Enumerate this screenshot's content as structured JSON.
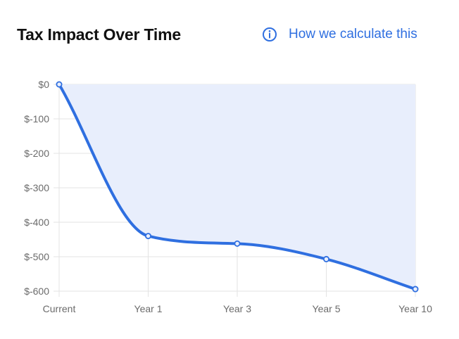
{
  "header": {
    "title": "Tax Impact Over Time",
    "help_link_label": "How we calculate this",
    "help_icon": "info-circle-icon"
  },
  "chart_data": {
    "type": "area",
    "title": "",
    "xlabel": "",
    "ylabel": "",
    "categories": [
      "Current",
      "Year 1",
      "Year 3",
      "Year 5",
      "Year 10"
    ],
    "series": [
      {
        "values": [
          0,
          -440,
          -462,
          -507,
          -594
        ],
        "color": "#2f6fe0",
        "fill": "#e8eefc"
      }
    ],
    "ylim": [
      -600,
      0
    ],
    "yticks": [
      0,
      -100,
      -200,
      -300,
      -400,
      -500,
      -600
    ],
    "ytick_labels": [
      "$0",
      "$-100",
      "$-200",
      "$-300",
      "$-400",
      "$-500",
      "$-600"
    ],
    "grid": true,
    "legend": "none",
    "colors": {
      "line": "#2f6fe0",
      "fill": "#e8eefc",
      "grid": "#e3e3e3"
    }
  }
}
